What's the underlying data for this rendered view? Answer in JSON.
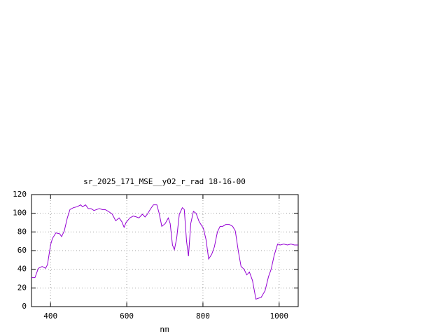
{
  "chart_data": {
    "type": "line",
    "title": "sr_2025_171_MSE__y02_r_rad 18-16-00",
    "x_label": "nm",
    "series": [
      {
        "name": null,
        "color": "#9400d3",
        "x": [
          350,
          359,
          368,
          378,
          387,
          392,
          400,
          405,
          414,
          424,
          429,
          436,
          444,
          451,
          460,
          470,
          479,
          484,
          492,
          499,
          506,
          514,
          521,
          528,
          536,
          543,
          552,
          562,
          571,
          580,
          587,
          593,
          598,
          608,
          617,
          626,
          632,
          641,
          648,
          654,
          663,
          670,
          679,
          685,
          692,
          701,
          709,
          714,
          720,
          725,
          731,
          738,
          746,
          751,
          757,
          762,
          768,
          775,
          782,
          790,
          801,
          808,
          815,
          823,
          830,
          838,
          845,
          852,
          860,
          869,
          878,
          885,
          893,
          900,
          908,
          915,
          922,
          930,
          939,
          946,
          953,
          963,
          972,
          979,
          987,
          996,
          1003,
          1012,
          1022,
          1031,
          1040,
          1050
        ],
        "values": [
          31,
          31,
          41,
          43,
          41,
          45,
          66,
          73,
          79,
          78,
          75,
          81,
          95,
          104,
          106,
          107,
          109,
          107,
          109,
          105,
          105,
          103,
          104,
          105,
          104,
          104,
          102,
          99,
          92,
          95,
          91,
          85,
          90,
          95,
          97,
          96,
          95,
          99,
          96,
          99,
          105,
          109,
          109,
          100,
          86,
          89,
          95,
          89,
          66,
          61,
          73,
          99,
          106,
          104,
          70,
          54,
          89,
          102,
          100,
          91,
          84,
          72,
          51,
          56,
          64,
          80,
          86,
          86,
          88,
          88,
          86,
          81,
          59,
          43,
          40,
          34,
          37,
          28,
          8,
          9,
          10,
          17,
          32,
          40,
          55,
          67,
          66,
          67,
          66,
          67,
          66,
          66
        ]
      }
    ],
    "xlim": [
      350,
      1050
    ],
    "xticks": [
      400,
      600,
      800,
      1000
    ],
    "ylim": [
      0,
      120
    ],
    "yticks": [
      0,
      20,
      40,
      60,
      80,
      100,
      120
    ],
    "grid": true
  }
}
